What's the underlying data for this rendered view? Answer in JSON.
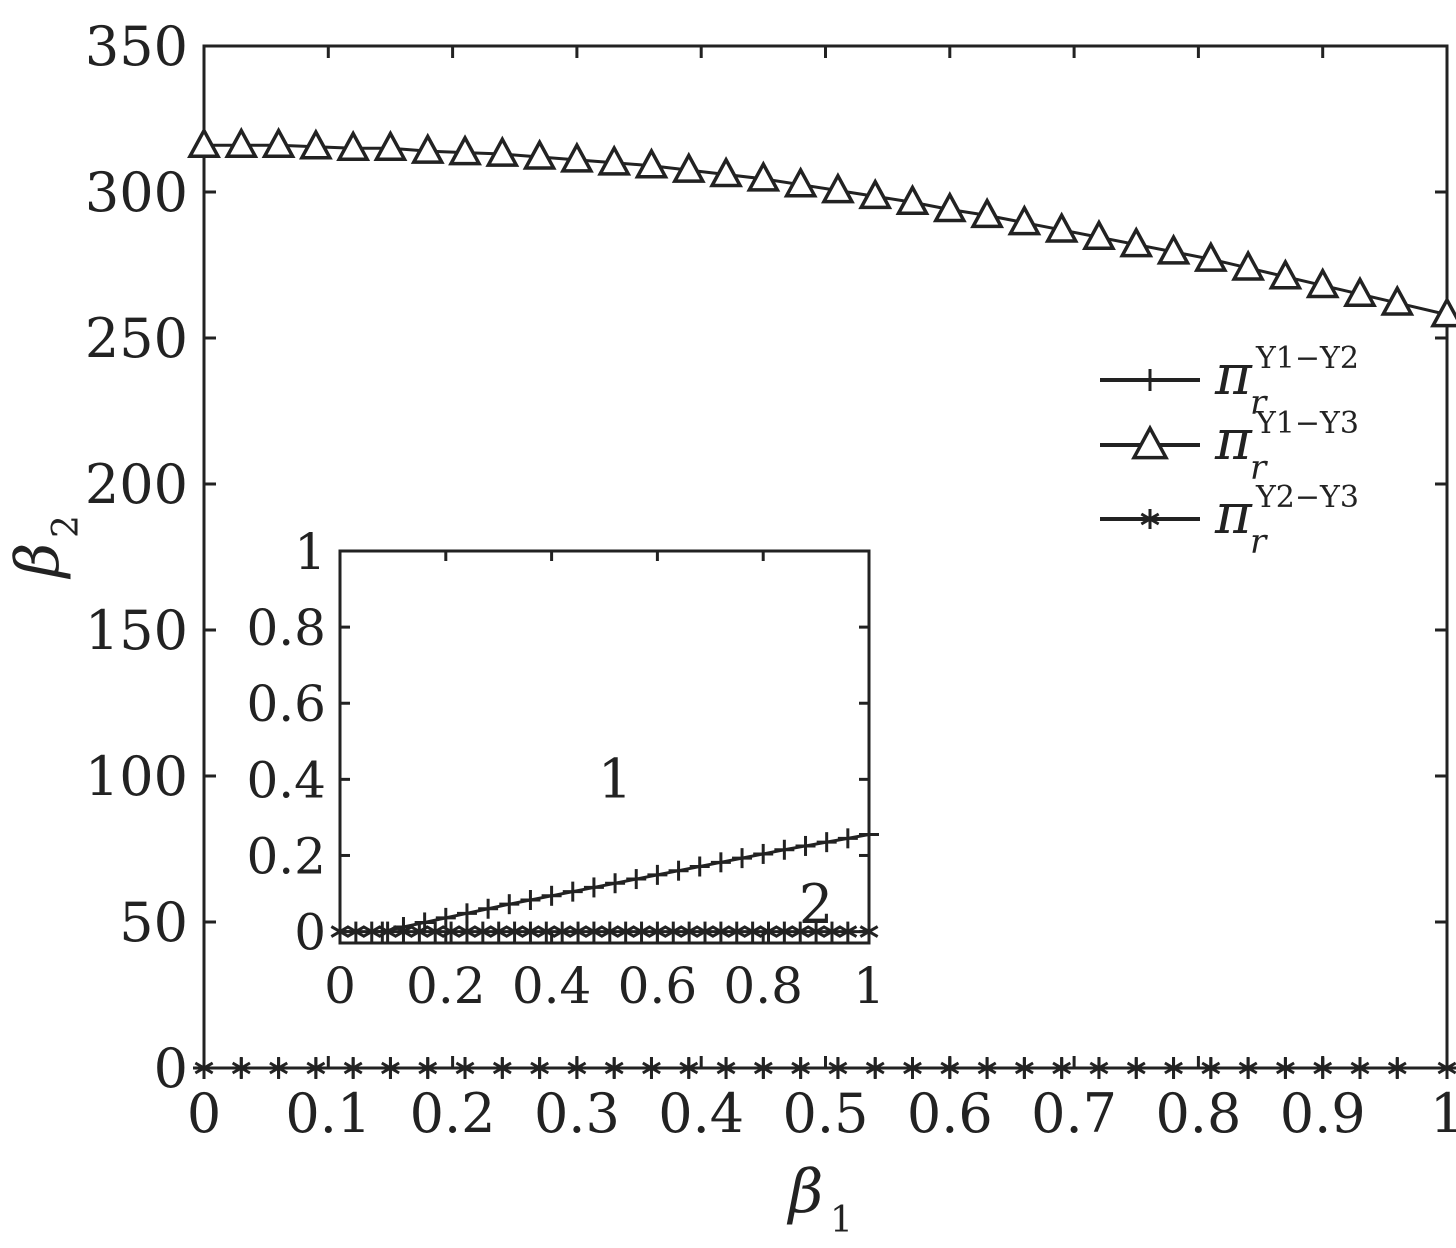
{
  "chart_data": [
    {
      "id": "main",
      "type": "line",
      "xlabel": "β",
      "xlabel_sub": "1",
      "ylabel": "β",
      "ylabel_sub": "2",
      "xlim": [
        0,
        1
      ],
      "ylim": [
        0,
        350
      ],
      "xticks": [
        "0",
        "0.1",
        "0.2",
        "0.3",
        "0.4",
        "0.5",
        "0.6",
        "0.7",
        "0.8",
        "0.9",
        "1"
      ],
      "yticks": [
        "0",
        "50",
        "100",
        "150",
        "200",
        "250",
        "300",
        "350"
      ],
      "grid": false,
      "legend_position": "right",
      "series": [
        {
          "name": "π",
          "name_sup": "Y1−Y2",
          "name_sub": "r",
          "marker": "plus",
          "x": [
            0,
            0.03,
            0.06,
            0.09,
            0.12,
            0.15,
            0.18,
            0.21,
            0.24,
            0.27,
            0.3,
            0.33,
            0.36,
            0.39,
            0.42,
            0.45,
            0.48,
            0.51,
            0.54,
            0.57,
            0.6,
            0.63,
            0.66,
            0.69,
            0.72,
            0.75,
            0.78,
            0.81,
            0.84,
            0.87,
            0.9,
            0.93,
            0.96,
            1
          ],
          "y": [
            0,
            0,
            0,
            0,
            0,
            0,
            0,
            0,
            0,
            0,
            0,
            0,
            0,
            0,
            0,
            0,
            0,
            0,
            0,
            0,
            0,
            0,
            0,
            0,
            0,
            0,
            0,
            0,
            0,
            0,
            0,
            0,
            0,
            0
          ]
        },
        {
          "name": "π",
          "name_sup": "Y1−Y3",
          "name_sub": "r",
          "marker": "triangle",
          "x": [
            0,
            0.03,
            0.06,
            0.09,
            0.12,
            0.15,
            0.18,
            0.21,
            0.24,
            0.27,
            0.3,
            0.33,
            0.36,
            0.39,
            0.42,
            0.45,
            0.48,
            0.51,
            0.54,
            0.57,
            0.6,
            0.63,
            0.66,
            0.69,
            0.72,
            0.75,
            0.78,
            0.81,
            0.84,
            0.87,
            0.9,
            0.93,
            0.96,
            1
          ],
          "y": [
            316,
            316,
            316,
            315.5,
            315,
            315,
            314,
            313.5,
            313,
            312,
            311,
            310,
            309,
            307.5,
            306,
            304.5,
            302.5,
            300.5,
            298.5,
            296.5,
            294,
            292,
            289.5,
            287,
            284.5,
            282,
            279.5,
            277,
            274,
            271,
            268,
            265,
            262,
            258
          ]
        },
        {
          "name": "π",
          "name_sup": "Y2−Y3",
          "name_sub": "r",
          "marker": "asterisk",
          "x": [
            0,
            0.03,
            0.06,
            0.09,
            0.12,
            0.15,
            0.18,
            0.21,
            0.24,
            0.27,
            0.3,
            0.33,
            0.36,
            0.39,
            0.42,
            0.45,
            0.48,
            0.51,
            0.54,
            0.57,
            0.6,
            0.63,
            0.66,
            0.69,
            0.72,
            0.75,
            0.78,
            0.81,
            0.84,
            0.87,
            0.9,
            0.93,
            0.96,
            1
          ],
          "y": [
            0,
            0,
            0,
            0,
            0,
            0,
            0,
            0,
            0,
            0,
            0,
            0,
            0,
            0,
            0,
            0,
            0,
            0,
            0,
            0,
            0,
            0,
            0,
            0,
            0,
            0,
            0,
            0,
            0,
            0,
            0,
            0,
            0,
            0
          ]
        }
      ]
    },
    {
      "id": "inset",
      "type": "line",
      "xlim": [
        0,
        1
      ],
      "ylim": [
        -0.03,
        1
      ],
      "xticks": [
        "0",
        "0.2",
        "0.4",
        "0.6",
        "0.8",
        "1"
      ],
      "yticks": [
        "0",
        "0.2",
        "0.4",
        "0.6",
        "0.8",
        "1"
      ],
      "region_labels": [
        {
          "text": "1",
          "x": 0.52,
          "y": 0.4
        },
        {
          "text": "2",
          "x": 0.9,
          "y": 0.07
        }
      ],
      "series": [
        {
          "marker": "plus",
          "x": [
            0.08,
            0.12,
            0.16,
            0.2,
            0.24,
            0.28,
            0.32,
            0.36,
            0.4,
            0.44,
            0.48,
            0.52,
            0.56,
            0.6,
            0.64,
            0.68,
            0.72,
            0.76,
            0.8,
            0.84,
            0.88,
            0.92,
            0.96,
            1
          ],
          "y": [
            0,
            0.012,
            0.024,
            0.036,
            0.048,
            0.06,
            0.072,
            0.083,
            0.094,
            0.105,
            0.116,
            0.127,
            0.138,
            0.149,
            0.16,
            0.171,
            0.182,
            0.193,
            0.204,
            0.215,
            0.225,
            0.235,
            0.245,
            0.255
          ]
        },
        {
          "marker": "asterisk",
          "x": [
            0,
            0.03,
            0.06,
            0.09,
            0.12,
            0.15,
            0.18,
            0.21,
            0.24,
            0.27,
            0.3,
            0.33,
            0.36,
            0.39,
            0.42,
            0.45,
            0.48,
            0.51,
            0.54,
            0.57,
            0.6,
            0.63,
            0.66,
            0.69,
            0.72,
            0.75,
            0.78,
            0.81,
            0.84,
            0.87,
            0.9,
            0.93,
            0.96,
            1
          ],
          "y": [
            0,
            0,
            0,
            0,
            0,
            0,
            0,
            0,
            0,
            0,
            0,
            0,
            0,
            0,
            0,
            0,
            0,
            0,
            0,
            0,
            0,
            0,
            0,
            0,
            0,
            0,
            0,
            0,
            0,
            0,
            0,
            0,
            0,
            0
          ]
        }
      ]
    }
  ]
}
